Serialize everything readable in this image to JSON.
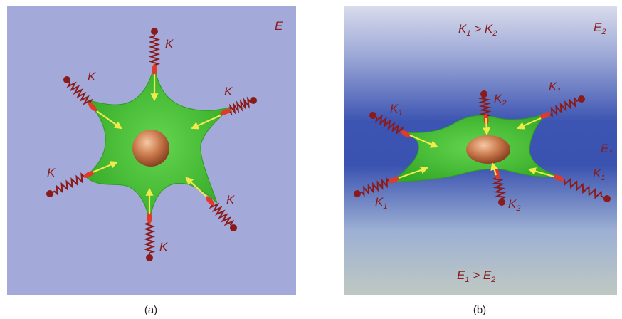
{
  "panel_a": {
    "caption": "(a)",
    "medium_label": "E",
    "spring_labels": [
      "K",
      "K",
      "K",
      "K",
      "K",
      "K"
    ]
  },
  "panel_b": {
    "caption": "(b)",
    "top_relation": {
      "left": "K",
      "left_sub": "1",
      "op": " > ",
      "right": "K",
      "right_sub": "2"
    },
    "bottom_relation": {
      "left": "E",
      "left_sub": "1",
      "op": " > ",
      "right": "E",
      "right_sub": "2"
    },
    "label_e2": {
      "main": "E",
      "sub": "2"
    },
    "label_e1": {
      "main": "E",
      "sub": "1"
    },
    "spring_labels": [
      {
        "main": "K",
        "sub": "2"
      },
      {
        "main": "K",
        "sub": "1"
      },
      {
        "main": "K",
        "sub": "1"
      },
      {
        "main": "K",
        "sub": "1"
      },
      {
        "main": "K",
        "sub": "1"
      },
      {
        "main": "K",
        "sub": "2"
      }
    ]
  },
  "colors": {
    "panel_a_bg": "#a3a9d8",
    "cell": "#4cc43a",
    "nucleus": "#b8633a",
    "spring": "#8b1a1a",
    "arrow": "#f2e94a",
    "label": "#8b1a1a"
  }
}
